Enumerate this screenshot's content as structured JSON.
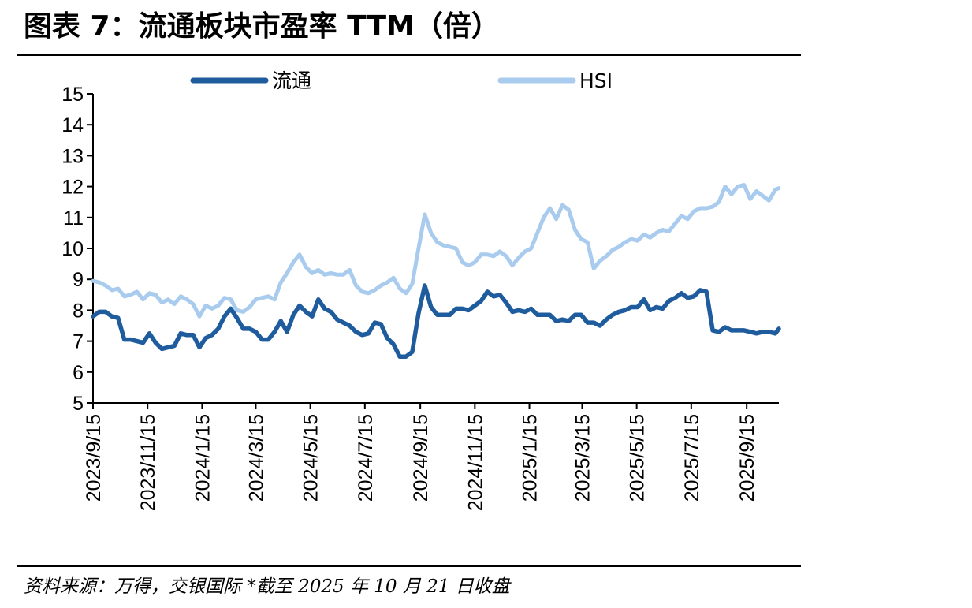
{
  "title": "图表 7：流通板块市盈率 TTM（倍）",
  "source": "资料来源：万得，交银国际 *截至 2025 年 10 月 21 日收盘",
  "colors": {
    "series_1": "#1f5c9e",
    "series_2": "#a9cbed",
    "axis": "#000000"
  },
  "chart_data": {
    "type": "line",
    "title": "图表 7：流通板块市盈率 TTM（倍）",
    "xlabel": "",
    "ylabel": "",
    "ylim": [
      5,
      15
    ],
    "yticks": [
      "5",
      "6",
      "7",
      "8",
      "9",
      "10",
      "11",
      "12",
      "13",
      "14",
      "15"
    ],
    "xlim": [
      "2023/9/15",
      "2025/10/21"
    ],
    "xticks": [
      "2023/9/15",
      "2023/11/15",
      "2024/1/15",
      "2024/3/15",
      "2024/5/15",
      "2024/7/15",
      "2024/9/15",
      "2024/11/15",
      "2025/1/15",
      "2025/3/15",
      "2025/5/15",
      "2025/7/15",
      "2025/9/15"
    ],
    "grid": false,
    "legend": "top",
    "series": [
      {
        "name": "流通",
        "points": [
          [
            "2023/9/15",
            7.8
          ],
          [
            "2023/9/22",
            7.95
          ],
          [
            "2023/9/29",
            7.95
          ],
          [
            "2023/10/6",
            7.8
          ],
          [
            "2023/10/13",
            7.75
          ],
          [
            "2023/10/20",
            7.05
          ],
          [
            "2023/10/27",
            7.05
          ],
          [
            "2023/11/3",
            7.0
          ],
          [
            "2023/11/10",
            6.95
          ],
          [
            "2023/11/17",
            7.25
          ],
          [
            "2023/11/24",
            6.95
          ],
          [
            "2023/12/1",
            6.75
          ],
          [
            "2023/12/8",
            6.8
          ],
          [
            "2023/12/15",
            6.85
          ],
          [
            "2023/12/22",
            7.25
          ],
          [
            "2023/12/29",
            7.2
          ],
          [
            "2024/1/5",
            7.2
          ],
          [
            "2024/1/12",
            6.8
          ],
          [
            "2024/1/19",
            7.1
          ],
          [
            "2024/1/26",
            7.2
          ],
          [
            "2024/2/2",
            7.4
          ],
          [
            "2024/2/9",
            7.8
          ],
          [
            "2024/2/16",
            8.05
          ],
          [
            "2024/2/23",
            7.75
          ],
          [
            "2024/3/1",
            7.4
          ],
          [
            "2024/3/8",
            7.4
          ],
          [
            "2024/3/15",
            7.3
          ],
          [
            "2024/3/22",
            7.05
          ],
          [
            "2024/3/29",
            7.05
          ],
          [
            "2024/4/5",
            7.3
          ],
          [
            "2024/4/12",
            7.65
          ],
          [
            "2024/4/19",
            7.3
          ],
          [
            "2024/4/26",
            7.85
          ],
          [
            "2024/5/3",
            8.15
          ],
          [
            "2024/5/10",
            7.95
          ],
          [
            "2024/5/17",
            7.8
          ],
          [
            "2024/5/24",
            8.35
          ],
          [
            "2024/5/31",
            8.05
          ],
          [
            "2024/6/7",
            7.95
          ],
          [
            "2024/6/14",
            7.7
          ],
          [
            "2024/6/21",
            7.6
          ],
          [
            "2024/6/28",
            7.5
          ],
          [
            "2024/7/5",
            7.3
          ],
          [
            "2024/7/12",
            7.2
          ],
          [
            "2024/7/19",
            7.25
          ],
          [
            "2024/7/26",
            7.6
          ],
          [
            "2024/8/2",
            7.55
          ],
          [
            "2024/8/9",
            7.1
          ],
          [
            "2024/8/16",
            6.9
          ],
          [
            "2024/8/23",
            6.5
          ],
          [
            "2024/8/30",
            6.5
          ],
          [
            "2024/9/6",
            6.65
          ],
          [
            "2024/9/13",
            7.9
          ],
          [
            "2024/9/20",
            8.8
          ],
          [
            "2024/9/27",
            8.1
          ],
          [
            "2024/10/4",
            7.85
          ],
          [
            "2024/10/11",
            7.85
          ],
          [
            "2024/10/18",
            7.85
          ],
          [
            "2024/10/25",
            8.05
          ],
          [
            "2024/11/1",
            8.05
          ],
          [
            "2024/11/8",
            8.0
          ],
          [
            "2024/11/15",
            8.15
          ],
          [
            "2024/11/22",
            8.3
          ],
          [
            "2024/11/29",
            8.6
          ],
          [
            "2024/12/6",
            8.45
          ],
          [
            "2024/12/13",
            8.5
          ],
          [
            "2024/12/20",
            8.25
          ],
          [
            "2024/12/27",
            7.95
          ],
          [
            "2025/1/3",
            8.0
          ],
          [
            "2025/1/10",
            7.95
          ],
          [
            "2025/1/17",
            8.05
          ],
          [
            "2025/1/24",
            7.85
          ],
          [
            "2025/1/31",
            7.85
          ],
          [
            "2025/2/7",
            7.85
          ],
          [
            "2025/2/14",
            7.65
          ],
          [
            "2025/2/21",
            7.7
          ],
          [
            "2025/2/28",
            7.65
          ],
          [
            "2025/3/7",
            7.85
          ],
          [
            "2025/3/14",
            7.85
          ],
          [
            "2025/3/21",
            7.6
          ],
          [
            "2025/3/28",
            7.6
          ],
          [
            "2025/4/4",
            7.5
          ],
          [
            "2025/4/11",
            7.7
          ],
          [
            "2025/4/18",
            7.85
          ],
          [
            "2025/4/25",
            7.95
          ],
          [
            "2025/5/2",
            8.0
          ],
          [
            "2025/5/9",
            8.1
          ],
          [
            "2025/5/16",
            8.1
          ],
          [
            "2025/5/23",
            8.35
          ],
          [
            "2025/5/30",
            8.0
          ],
          [
            "2025/6/6",
            8.1
          ],
          [
            "2025/6/13",
            8.05
          ],
          [
            "2025/6/20",
            8.3
          ],
          [
            "2025/6/27",
            8.4
          ],
          [
            "2025/7/4",
            8.55
          ],
          [
            "2025/7/11",
            8.4
          ],
          [
            "2025/7/18",
            8.45
          ],
          [
            "2025/7/25",
            8.65
          ],
          [
            "2025/8/1",
            8.6
          ],
          [
            "2025/8/8",
            7.35
          ],
          [
            "2025/8/15",
            7.3
          ],
          [
            "2025/8/22",
            7.45
          ],
          [
            "2025/8/29",
            7.35
          ],
          [
            "2025/9/5",
            7.35
          ],
          [
            "2025/9/12",
            7.35
          ],
          [
            "2025/9/19",
            7.3
          ],
          [
            "2025/9/26",
            7.25
          ],
          [
            "2025/10/3",
            7.3
          ],
          [
            "2025/10/10",
            7.3
          ],
          [
            "2025/10/17",
            7.25
          ],
          [
            "2025/10/21",
            7.4
          ]
        ]
      },
      {
        "name": "HSI",
        "points": [
          [
            "2023/9/15",
            8.95
          ],
          [
            "2023/9/22",
            8.9
          ],
          [
            "2023/9/29",
            8.8
          ],
          [
            "2023/10/6",
            8.65
          ],
          [
            "2023/10/13",
            8.7
          ],
          [
            "2023/10/20",
            8.45
          ],
          [
            "2023/10/27",
            8.5
          ],
          [
            "2023/11/3",
            8.6
          ],
          [
            "2023/11/10",
            8.35
          ],
          [
            "2023/11/17",
            8.55
          ],
          [
            "2023/11/24",
            8.5
          ],
          [
            "2023/12/1",
            8.25
          ],
          [
            "2023/12/8",
            8.35
          ],
          [
            "2023/12/15",
            8.2
          ],
          [
            "2023/12/22",
            8.45
          ],
          [
            "2023/12/29",
            8.35
          ],
          [
            "2024/1/5",
            8.2
          ],
          [
            "2024/1/12",
            7.8
          ],
          [
            "2024/1/19",
            8.15
          ],
          [
            "2024/1/26",
            8.05
          ],
          [
            "2024/2/2",
            8.15
          ],
          [
            "2024/2/9",
            8.4
          ],
          [
            "2024/2/16",
            8.35
          ],
          [
            "2024/2/23",
            8.0
          ],
          [
            "2024/3/1",
            7.95
          ],
          [
            "2024/3/8",
            8.1
          ],
          [
            "2024/3/15",
            8.35
          ],
          [
            "2024/3/22",
            8.4
          ],
          [
            "2024/3/29",
            8.45
          ],
          [
            "2024/4/5",
            8.35
          ],
          [
            "2024/4/12",
            8.9
          ],
          [
            "2024/4/19",
            9.2
          ],
          [
            "2024/4/26",
            9.55
          ],
          [
            "2024/5/3",
            9.8
          ],
          [
            "2024/5/10",
            9.4
          ],
          [
            "2024/5/17",
            9.2
          ],
          [
            "2024/5/24",
            9.3
          ],
          [
            "2024/5/31",
            9.15
          ],
          [
            "2024/6/7",
            9.2
          ],
          [
            "2024/6/14",
            9.15
          ],
          [
            "2024/6/21",
            9.15
          ],
          [
            "2024/6/28",
            9.3
          ],
          [
            "2024/7/5",
            8.8
          ],
          [
            "2024/7/12",
            8.6
          ],
          [
            "2024/7/19",
            8.55
          ],
          [
            "2024/7/26",
            8.65
          ],
          [
            "2024/8/2",
            8.8
          ],
          [
            "2024/8/9",
            8.9
          ],
          [
            "2024/8/16",
            9.05
          ],
          [
            "2024/8/23",
            8.7
          ],
          [
            "2024/8/30",
            8.55
          ],
          [
            "2024/9/6",
            8.85
          ],
          [
            "2024/9/13",
            10.0
          ],
          [
            "2024/9/20",
            11.1
          ],
          [
            "2024/9/27",
            10.5
          ],
          [
            "2024/10/4",
            10.2
          ],
          [
            "2024/10/11",
            10.1
          ],
          [
            "2024/10/18",
            10.05
          ],
          [
            "2024/10/25",
            10.0
          ],
          [
            "2024/11/1",
            9.55
          ],
          [
            "2024/11/8",
            9.45
          ],
          [
            "2024/11/15",
            9.55
          ],
          [
            "2024/11/22",
            9.8
          ],
          [
            "2024/11/29",
            9.8
          ],
          [
            "2024/12/6",
            9.75
          ],
          [
            "2024/12/13",
            9.9
          ],
          [
            "2024/12/20",
            9.75
          ],
          [
            "2024/12/27",
            9.45
          ],
          [
            "2025/1/3",
            9.7
          ],
          [
            "2025/1/10",
            9.9
          ],
          [
            "2025/1/17",
            10.0
          ],
          [
            "2025/1/24",
            10.5
          ],
          [
            "2025/1/31",
            11.0
          ],
          [
            "2025/2/7",
            11.3
          ],
          [
            "2025/2/14",
            10.95
          ],
          [
            "2025/2/21",
            11.4
          ],
          [
            "2025/2/28",
            11.25
          ],
          [
            "2025/3/7",
            10.6
          ],
          [
            "2025/3/14",
            10.3
          ],
          [
            "2025/3/21",
            10.2
          ],
          [
            "2025/3/28",
            9.35
          ],
          [
            "2025/4/4",
            9.6
          ],
          [
            "2025/4/11",
            9.75
          ],
          [
            "2025/4/18",
            9.95
          ],
          [
            "2025/4/25",
            10.05
          ],
          [
            "2025/5/2",
            10.2
          ],
          [
            "2025/5/9",
            10.3
          ],
          [
            "2025/5/16",
            10.25
          ],
          [
            "2025/5/23",
            10.45
          ],
          [
            "2025/5/30",
            10.35
          ],
          [
            "2025/6/6",
            10.5
          ],
          [
            "2025/6/13",
            10.6
          ],
          [
            "2025/6/20",
            10.55
          ],
          [
            "2025/6/27",
            10.8
          ],
          [
            "2025/7/4",
            11.05
          ],
          [
            "2025/7/11",
            10.95
          ],
          [
            "2025/7/18",
            11.2
          ],
          [
            "2025/7/25",
            11.3
          ],
          [
            "2025/8/1",
            11.3
          ],
          [
            "2025/8/8",
            11.35
          ],
          [
            "2025/8/15",
            11.5
          ],
          [
            "2025/8/22",
            12.0
          ],
          [
            "2025/8/29",
            11.75
          ],
          [
            "2025/9/5",
            12.0
          ],
          [
            "2025/9/12",
            12.05
          ],
          [
            "2025/9/19",
            11.6
          ],
          [
            "2025/9/26",
            11.85
          ],
          [
            "2025/10/3",
            11.7
          ],
          [
            "2025/10/10",
            11.55
          ],
          [
            "2025/10/17",
            11.9
          ],
          [
            "2025/10/21",
            11.95
          ]
        ]
      }
    ]
  }
}
